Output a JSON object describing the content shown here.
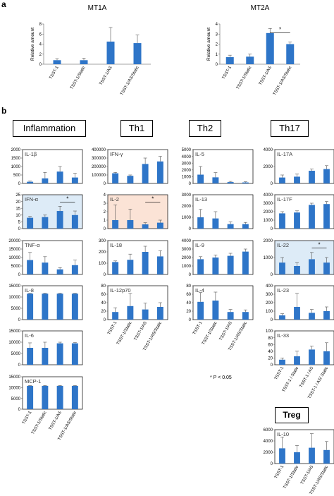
{
  "panel_labels": {
    "a": "a",
    "b": "b"
  },
  "headers": {
    "inflammation": "Inflammation",
    "th1": "Th1",
    "th2": "Th2",
    "th17": "Th17",
    "treg": "Treg"
  },
  "significance_note": "* P < 0.05",
  "colors": {
    "bar": "#2E75C8",
    "blue_bg": "#DDEBF7",
    "orange_bg": "#FBE3D6"
  },
  "chart_data": [
    {
      "id": "MT1A",
      "type": "bar",
      "title": "MT1A",
      "ylabel": "Relative amount",
      "ylim": [
        0,
        8
      ],
      "yticks": [
        "0",
        "2",
        "4",
        "6",
        "8"
      ],
      "categories": [
        "TSST-1",
        "TSST-1/Static",
        "TSST-1/AS",
        "TSST-1/AS/Static"
      ],
      "values": [
        0.8,
        0.8,
        4.5,
        4.2
      ],
      "errors": [
        0.3,
        0.4,
        2.8,
        1.6
      ],
      "significance": []
    },
    {
      "id": "MT2A",
      "type": "bar",
      "title": "MT2A",
      "ylabel": "Relative amount",
      "ylim": [
        0,
        4
      ],
      "yticks": [
        "0",
        "1",
        "2",
        "3",
        "4"
      ],
      "categories": [
        "TSST-1",
        "TSST-1/Static",
        "TSST-1/AS",
        "TSST-1/AS/Static"
      ],
      "values": [
        0.7,
        0.75,
        3.1,
        2.0
      ],
      "errors": [
        0.2,
        0.25,
        0.45,
        0.2
      ],
      "significance": [
        {
          "from": 2,
          "to": 3,
          "label": "*"
        }
      ]
    },
    {
      "id": "IL1b",
      "type": "bar",
      "label": "IL-1β",
      "ylim": [
        0,
        2000
      ],
      "yticks": [
        "0",
        "500",
        "1000",
        "1500",
        "2000"
      ],
      "values": [
        100,
        300,
        700,
        350
      ],
      "errors": [
        40,
        350,
        300,
        250
      ],
      "significance": []
    },
    {
      "id": "IFNa",
      "type": "bar",
      "label": "IFN-α",
      "ylim": [
        0,
        25
      ],
      "yticks": [
        "0",
        "5",
        "10",
        "15",
        "20",
        "25"
      ],
      "values": [
        8,
        8.5,
        13,
        10
      ],
      "errors": [
        1,
        1.5,
        3.5,
        3
      ],
      "significance": [
        {
          "from": 2,
          "to": 3,
          "label": "*"
        }
      ]
    },
    {
      "id": "TNFa",
      "type": "bar",
      "label": "TNF-α",
      "ylim": [
        0,
        20000
      ],
      "yticks": [
        "0",
        "5000",
        "10000",
        "15000",
        "20000"
      ],
      "values": [
        8500,
        7000,
        3000,
        5500
      ],
      "errors": [
        4500,
        3500,
        1000,
        3000
      ],
      "significance": []
    },
    {
      "id": "IL8",
      "type": "bar",
      "label": "IL-8",
      "ylim": [
        0,
        15000
      ],
      "yticks": [
        "0",
        "5000",
        "10000",
        "15000"
      ],
      "values": [
        11500,
        11500,
        11500,
        11500
      ],
      "errors": [
        200,
        200,
        200,
        200
      ],
      "significance": []
    },
    {
      "id": "IL6",
      "type": "bar",
      "label": "IL-6",
      "ylim": [
        0,
        15000
      ],
      "yticks": [
        "0",
        "5000",
        "10000",
        "15000"
      ],
      "values": [
        7500,
        7500,
        9500,
        9500
      ],
      "errors": [
        2200,
        2500,
        500,
        300
      ],
      "significance": []
    },
    {
      "id": "MCP1",
      "type": "bar",
      "label": "MCP-1",
      "ylim": [
        0,
        15000
      ],
      "yticks": [
        "0",
        "5000",
        "10000",
        "15000"
      ],
      "values": [
        10800,
        10800,
        10800,
        10800
      ],
      "errors": [
        150,
        150,
        150,
        150
      ],
      "significance": []
    },
    {
      "id": "IFNg",
      "type": "bar",
      "label": "IFN-γ",
      "ylim": [
        0,
        400000
      ],
      "yticks": [
        "0",
        "100000",
        "200000",
        "300000",
        "400000"
      ],
      "values": [
        120000,
        90000,
        230000,
        260000
      ],
      "errors": [
        10000,
        10000,
        70000,
        60000
      ],
      "significance": []
    },
    {
      "id": "IL2",
      "type": "bar",
      "label": "IL-2",
      "ylim": [
        0,
        4
      ],
      "yticks": [
        "0",
        "1",
        "2",
        "3",
        "4"
      ],
      "values": [
        1.0,
        1.0,
        0.5,
        0.7
      ],
      "errors": [
        1.8,
        1.3,
        0.2,
        0.3
      ],
      "significance": [
        {
          "from": 2,
          "to": 3,
          "label": "*"
        }
      ]
    },
    {
      "id": "IL18",
      "type": "bar",
      "label": "IL-18",
      "ylim": [
        0,
        300
      ],
      "yticks": [
        "0",
        "100",
        "200",
        "300"
      ],
      "values": [
        110,
        130,
        200,
        160
      ],
      "errors": [
        10,
        50,
        50,
        50
      ],
      "significance": []
    },
    {
      "id": "IL12p70",
      "type": "bar",
      "label": "IL-12p70",
      "ylim": [
        0,
        80
      ],
      "yticks": [
        "0",
        "20",
        "40",
        "60",
        "80"
      ],
      "values": [
        18,
        32,
        24,
        30
      ],
      "errors": [
        10,
        30,
        15,
        10
      ],
      "significance": []
    },
    {
      "id": "IL5",
      "type": "bar",
      "label": "IL-5",
      "ylim": [
        0,
        5000
      ],
      "yticks": [
        "0",
        "1000",
        "2000",
        "3000",
        "4000",
        "5000"
      ],
      "values": [
        1300,
        900,
        200,
        150
      ],
      "errors": [
        1200,
        700,
        100,
        100
      ],
      "significance": []
    },
    {
      "id": "IL13",
      "type": "bar",
      "label": "IL-13",
      "ylim": [
        0,
        3000
      ],
      "yticks": [
        "0",
        "1000",
        "2000",
        "3000"
      ],
      "values": [
        1000,
        900,
        400,
        400
      ],
      "errors": [
        700,
        600,
        200,
        150
      ],
      "significance": []
    },
    {
      "id": "IL9",
      "type": "bar",
      "label": "IL-9",
      "ylim": [
        0,
        4000
      ],
      "yticks": [
        "0",
        "1000",
        "2000",
        "3000",
        "4000"
      ],
      "values": [
        1800,
        2000,
        2200,
        2700
      ],
      "errors": [
        300,
        300,
        300,
        300
      ],
      "significance": []
    },
    {
      "id": "IL4",
      "type": "bar",
      "label": "IL-4",
      "ylim": [
        0,
        80
      ],
      "yticks": [
        "0",
        "20",
        "40",
        "60",
        "80"
      ],
      "values": [
        42,
        45,
        18,
        18
      ],
      "errors": [
        22,
        20,
        6,
        5
      ],
      "significance": []
    },
    {
      "id": "IL17A",
      "type": "bar",
      "label": "IL-17A",
      "ylim": [
        0,
        4000
      ],
      "yticks": [
        "0",
        "2000",
        "4000"
      ],
      "values": [
        700,
        800,
        1500,
        1700
      ],
      "errors": [
        300,
        300,
        200,
        400
      ],
      "significance": []
    },
    {
      "id": "IL17F",
      "type": "bar",
      "label": "IL-17F",
      "ylim": [
        0,
        4000
      ],
      "yticks": [
        "0",
        "1000",
        "2000",
        "3000",
        "4000"
      ],
      "values": [
        1800,
        1900,
        2800,
        2900
      ],
      "errors": [
        200,
        200,
        200,
        300
      ],
      "significance": []
    },
    {
      "id": "IL22",
      "type": "bar",
      "label": "IL-22",
      "ylim": [
        0,
        2000
      ],
      "yticks": [
        "0",
        "1000",
        "2000"
      ],
      "values": [
        700,
        500,
        900,
        700
      ],
      "errors": [
        300,
        200,
        400,
        300
      ],
      "significance": [
        {
          "from": 2,
          "to": 3,
          "label": "*"
        }
      ]
    },
    {
      "id": "IL23",
      "type": "bar",
      "label": "IL-23",
      "ylim": [
        0,
        400
      ],
      "yticks": [
        "0",
        "100",
        "200",
        "300",
        "400"
      ],
      "values": [
        50,
        150,
        80,
        100
      ],
      "errors": [
        20,
        160,
        40,
        50
      ],
      "significance": []
    },
    {
      "id": "IL33",
      "type": "bar",
      "label": "IL-33",
      "ylim": [
        0,
        100
      ],
      "yticks": [
        "0",
        "20",
        "40",
        "60",
        "80",
        "100"
      ],
      "values": [
        15,
        25,
        45,
        40
      ],
      "errors": [
        5,
        15,
        10,
        25
      ],
      "significance": []
    },
    {
      "id": "IL10",
      "type": "bar",
      "label": "IL-10",
      "ylim": [
        0,
        6000
      ],
      "yticks": [
        "0",
        "2000",
        "4000",
        "6000"
      ],
      "values": [
        2700,
        2000,
        2800,
        2400
      ],
      "errors": [
        2000,
        1200,
        2500,
        1500
      ],
      "significance": []
    }
  ],
  "x_categories": [
    "TSST-1",
    "TSST-1/Static",
    "TSST-1/AS",
    "TSST-1/AS/Static"
  ],
  "x_categories_inflammation": [
    "TSST-1",
    "TSST-1/Static",
    "TSST-1/AS",
    "TSST-1/AS/Static"
  ],
  "x_categories_th1": [
    "TSST-1",
    "TSST-1/Static",
    "TSST-1/AS",
    "TSST-1/AS/Static"
  ],
  "x_categories_th2": [
    "TSST-1",
    "TSST-1/Static",
    "TSST-1/AS",
    "TSST-1/AS/Static"
  ],
  "x_categories_th17": [
    "TSST-1",
    "TSST-1 / Static",
    "TSST-1 / AS",
    "TSST-1 / AS/ Static"
  ],
  "x_categories_treg": [
    "TSST-1",
    "TSST-1/Static",
    "TSST-1/AS",
    "TSST-1/AS/Static"
  ]
}
